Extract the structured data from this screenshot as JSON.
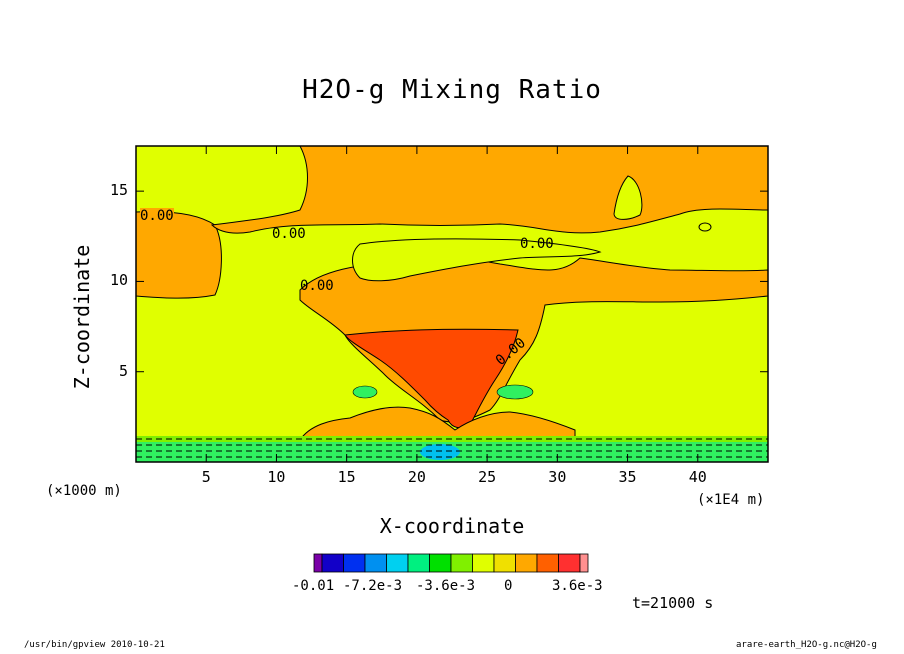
{
  "chart_data": {
    "type": "heatmap",
    "title": "H2O-g Mixing Ratio",
    "xlabel": "X-coordinate",
    "ylabel": "Z-coordinate",
    "x_unit_label": "(×1000 m)",
    "x_unit_label_right": "(×1E4 m)",
    "xlim": [
      0,
      45
    ],
    "ylim": [
      0,
      17.5
    ],
    "x_ticks": [
      5,
      10,
      15,
      20,
      25,
      30,
      35,
      40
    ],
    "y_ticks": [
      5,
      10,
      15
    ],
    "contour_labels": [
      "0.00",
      "0.00",
      "0.00",
      "0.00",
      "0.00"
    ],
    "colorbar": {
      "colors": [
        "#7a00a8",
        "#1200c8",
        "#0030f0",
        "#0090f0",
        "#00d0f0",
        "#00f080",
        "#00e000",
        "#80f000",
        "#e0ff00",
        "#f0e000",
        "#ffa800",
        "#ff6000",
        "#ff3030",
        "#ff9090"
      ],
      "labels": [
        "-0.01",
        "-7.2e-3",
        "-3.6e-3",
        "0",
        "3.6e-3"
      ]
    },
    "time_label": "t=21000 s",
    "colors": {
      "background_field": "#e0ff00",
      "positive_field": "#ffa800",
      "strong_positive": "#ff4a00",
      "negative_field": "#30f060"
    }
  },
  "footer": {
    "left": "/usr/bin/gpview   2010-10-21",
    "right": "arare-earth_H2O-g.nc@H2O-g"
  }
}
